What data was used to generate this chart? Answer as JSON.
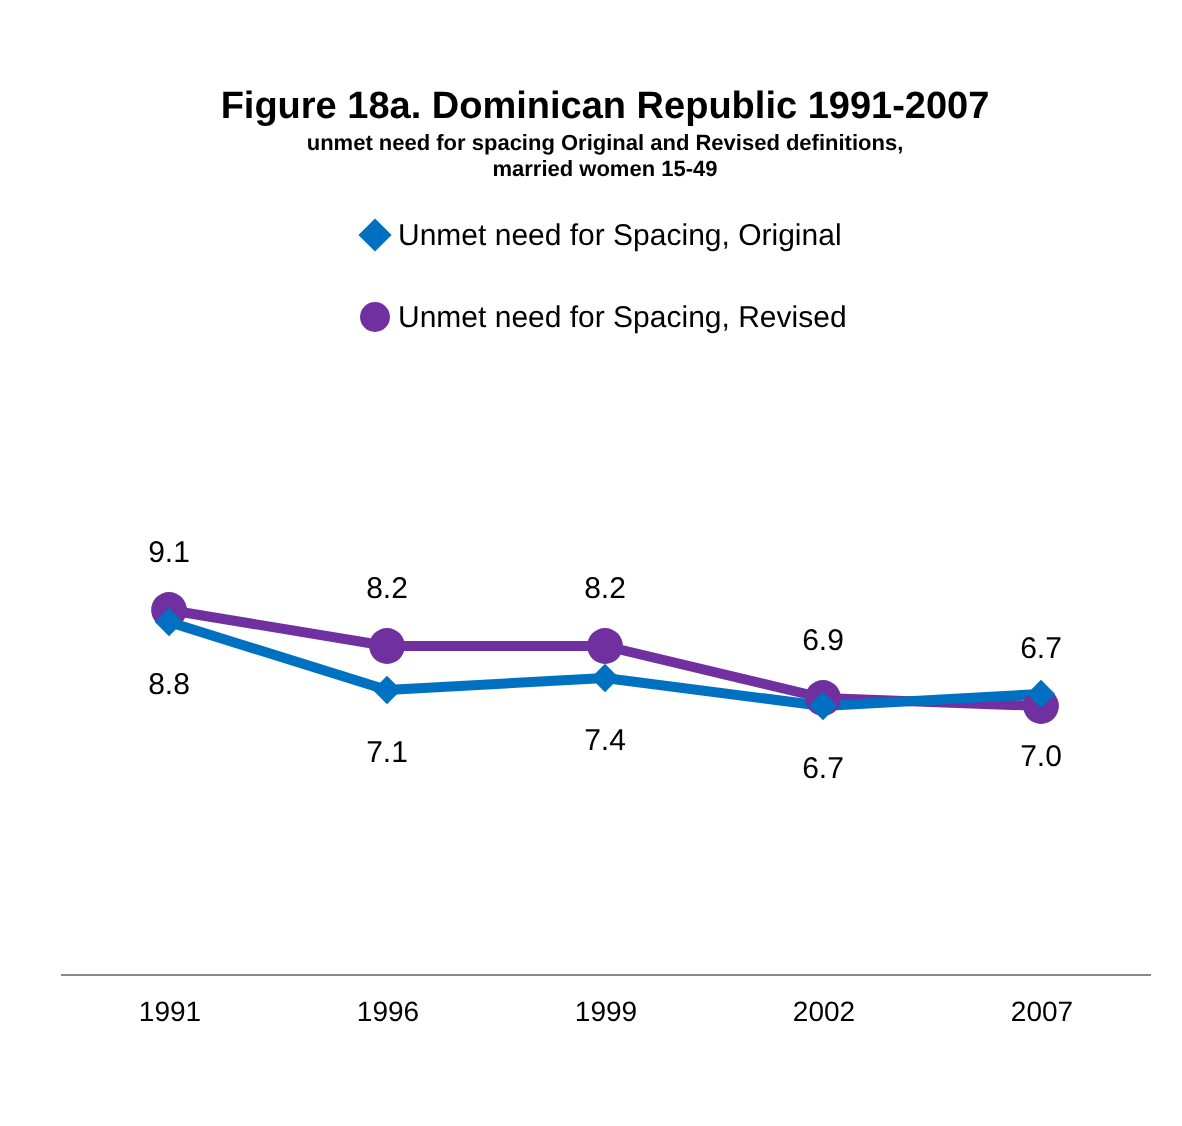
{
  "chart_data": {
    "type": "line",
    "title": "Figure 18a. Dominican Republic 1991-2007",
    "subtitle": "unmet need for spacing Original and Revised definitions,\nmarried women 15-49",
    "categories": [
      "1991",
      "1996",
      "1999",
      "2002",
      "2007"
    ],
    "series": [
      {
        "name": "Unmet need for Spacing, Original",
        "color": "#0070c0",
        "marker": "diamond",
        "values": [
          8.8,
          7.1,
          7.4,
          6.7,
          7.0
        ],
        "value_labels": [
          "8.8",
          "7.1",
          "7.4",
          "6.7",
          "7.0"
        ]
      },
      {
        "name": "Unmet need for Spacing, Revised",
        "color": "#7030a0",
        "marker": "circle",
        "values": [
          9.1,
          8.2,
          8.2,
          6.9,
          6.7
        ],
        "value_labels": [
          "9.1",
          "8.2",
          "8.2",
          "6.9",
          "6.7"
        ]
      }
    ],
    "legend": "top",
    "grid": false
  }
}
